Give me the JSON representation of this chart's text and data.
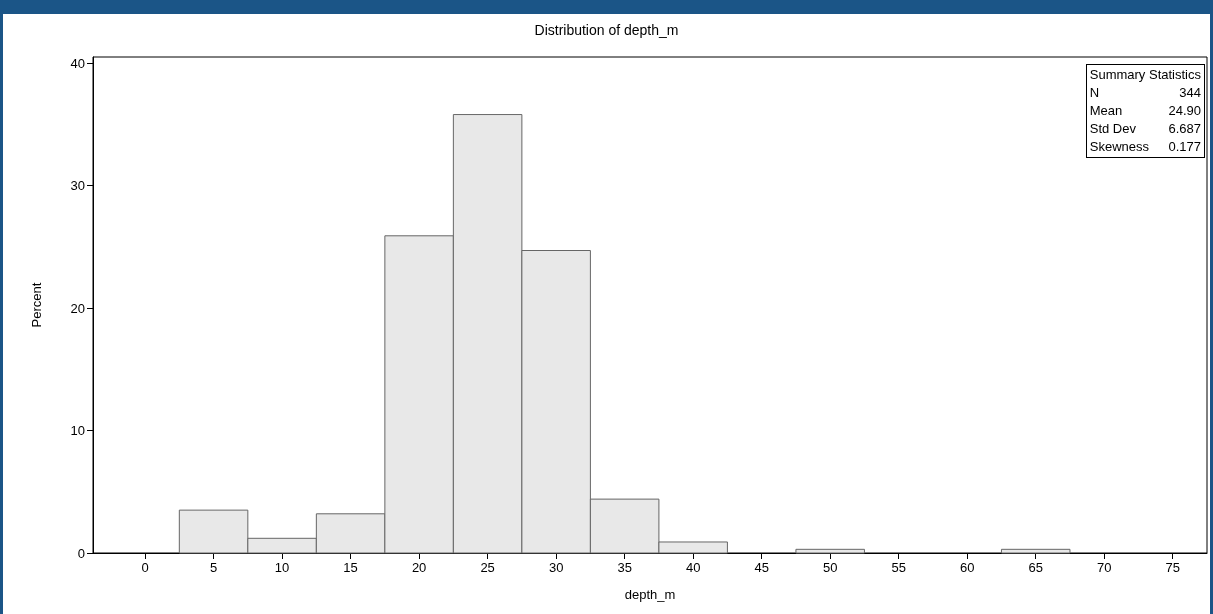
{
  "chart_data": {
    "type": "histogram",
    "title": "Distribution of depth_m",
    "xlabel": "depth_m",
    "ylabel": "Percent",
    "bins": [
      -2.5,
      2.5,
      7.5,
      12.5,
      17.5,
      22.5,
      27.5,
      32.5,
      37.5,
      42.5,
      47.5,
      52.5,
      57.5,
      62.5,
      67.5,
      72.5,
      77.5
    ],
    "values": [
      0,
      3.5,
      1.2,
      3.2,
      25.9,
      35.8,
      24.7,
      4.4,
      0.9,
      0,
      0.3,
      0,
      0,
      0.3,
      0,
      0
    ],
    "color": "#e8e8e8",
    "xlim": [
      -3.8,
      77.5
    ],
    "xticks": [
      0,
      5,
      10,
      15,
      20,
      25,
      30,
      35,
      40,
      45,
      50,
      55,
      60,
      65,
      70,
      75
    ],
    "ylim": [
      0,
      40.5
    ],
    "yticks": [
      0,
      10,
      20,
      30,
      40
    ],
    "grid": false,
    "annotations": [
      "Summary Statistics",
      "N 344",
      "Mean 24.90",
      "Std Dev 6.687",
      "Skewness 0.177"
    ]
  }
}
